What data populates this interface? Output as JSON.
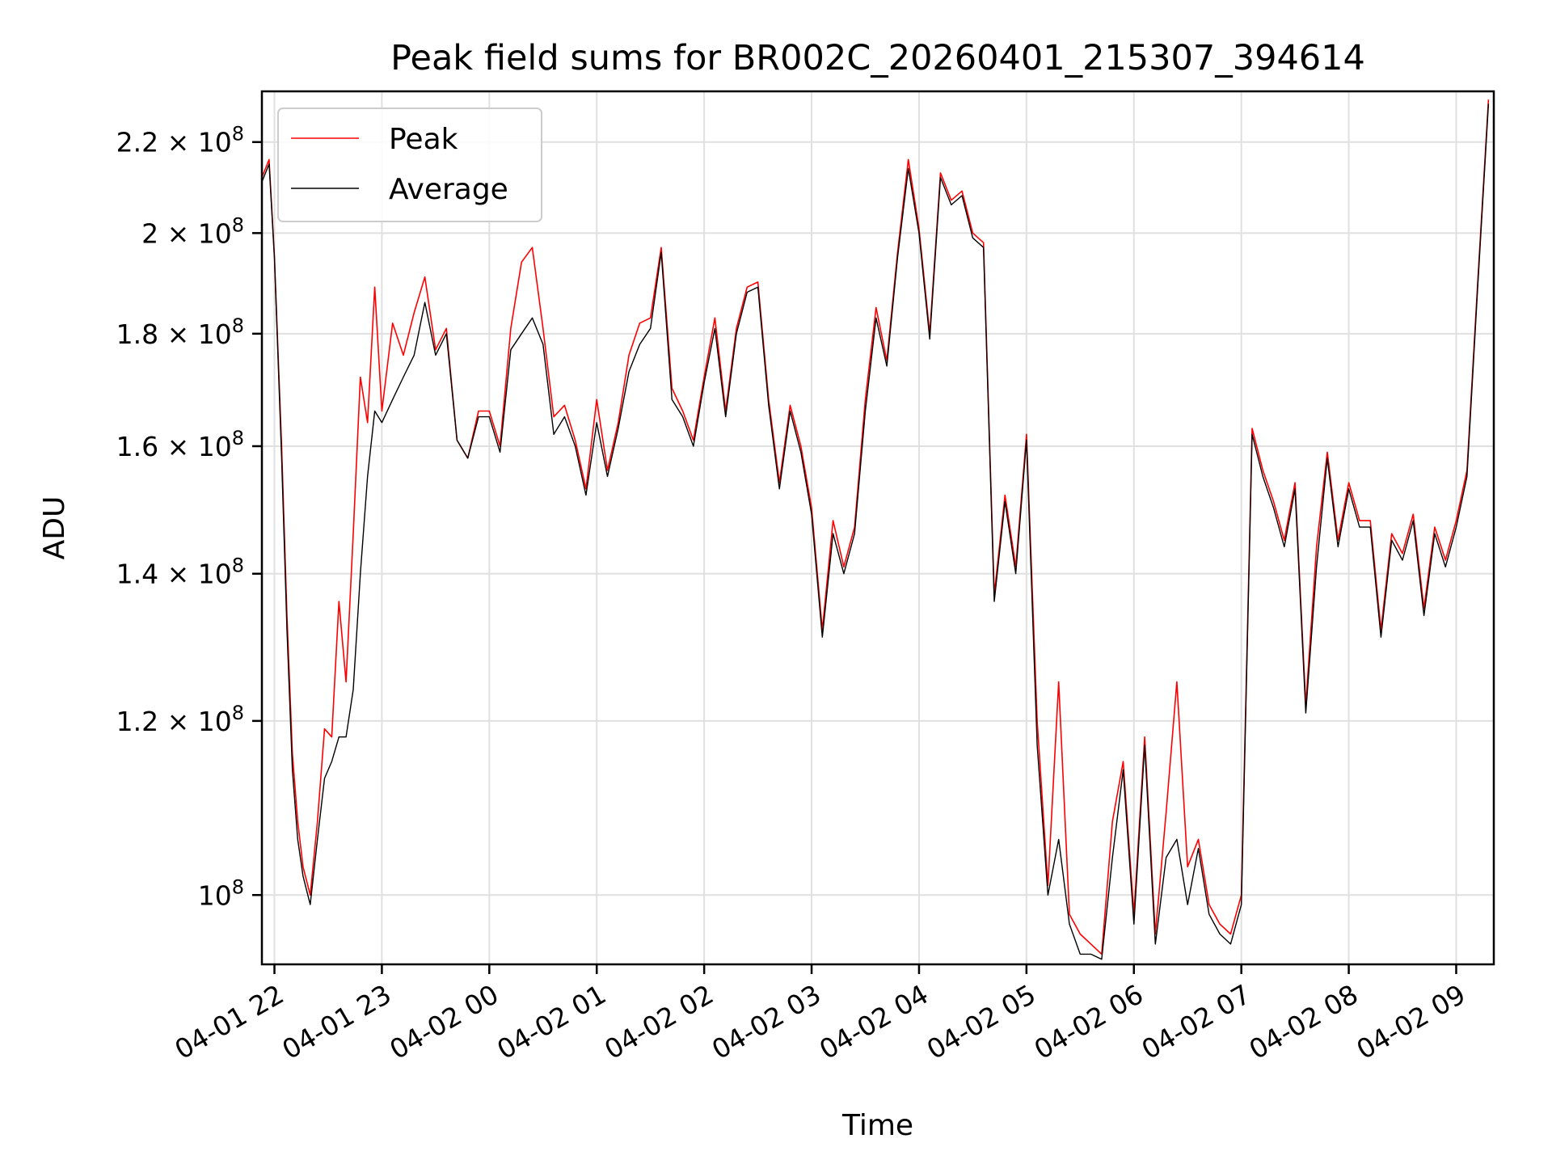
{
  "chart_data": {
    "type": "line",
    "title": "Peak field sums for BR002C_20260401_215307_394614",
    "xlabel": "Time",
    "ylabel": "ADU",
    "y_scale": "log",
    "ylim": [
      93000000,
      232000000
    ],
    "xlim": [
      "2026-04-01T21:53:00",
      "2026-04-02T09:21:00"
    ],
    "grid": true,
    "legend_position": "top-left",
    "x_ticks": [
      {
        "label": "04-01 22",
        "time": "2026-04-01T22:00:00"
      },
      {
        "label": "04-01 23",
        "time": "2026-04-01T23:00:00"
      },
      {
        "label": "04-02 00",
        "time": "2026-04-02T00:00:00"
      },
      {
        "label": "04-02 01",
        "time": "2026-04-02T01:00:00"
      },
      {
        "label": "04-02 02",
        "time": "2026-04-02T02:00:00"
      },
      {
        "label": "04-02 03",
        "time": "2026-04-02T03:00:00"
      },
      {
        "label": "04-02 04",
        "time": "2026-04-02T04:00:00"
      },
      {
        "label": "04-02 05",
        "time": "2026-04-02T05:00:00"
      },
      {
        "label": "04-02 06",
        "time": "2026-04-02T06:00:00"
      },
      {
        "label": "04-02 07",
        "time": "2026-04-02T07:00:00"
      },
      {
        "label": "04-02 08",
        "time": "2026-04-02T08:00:00"
      },
      {
        "label": "04-02 09",
        "time": "2026-04-02T09:00:00"
      }
    ],
    "y_ticks": [
      {
        "mantissa": "10",
        "exponent": "8",
        "value": 100000000
      },
      {
        "mantissa": "1.2 × 10",
        "exponent": "8",
        "value": 120000000
      },
      {
        "mantissa": "1.4 × 10",
        "exponent": "8",
        "value": 140000000
      },
      {
        "mantissa": "1.6 × 10",
        "exponent": "8",
        "value": 160000000
      },
      {
        "mantissa": "1.8 × 10",
        "exponent": "8",
        "value": 180000000
      },
      {
        "mantissa": "2 × 10",
        "exponent": "8",
        "value": 200000000
      },
      {
        "mantissa": "2.2 × 10",
        "exponent": "8",
        "value": 220000000
      }
    ],
    "x": [
      "2026-04-01T21:53:00",
      "2026-04-01T21:57:00",
      "2026-04-01T22:00:00",
      "2026-04-01T22:04:00",
      "2026-04-01T22:07:00",
      "2026-04-01T22:10:00",
      "2026-04-01T22:13:00",
      "2026-04-01T22:16:00",
      "2026-04-01T22:20:00",
      "2026-04-01T22:24:00",
      "2026-04-01T22:28:00",
      "2026-04-01T22:32:00",
      "2026-04-01T22:36:00",
      "2026-04-01T22:40:00",
      "2026-04-01T22:44:00",
      "2026-04-01T22:48:00",
      "2026-04-01T22:52:00",
      "2026-04-01T22:56:00",
      "2026-04-01T23:00:00",
      "2026-04-01T23:06:00",
      "2026-04-01T23:12:00",
      "2026-04-01T23:18:00",
      "2026-04-01T23:24:00",
      "2026-04-01T23:30:00",
      "2026-04-01T23:36:00",
      "2026-04-01T23:42:00",
      "2026-04-01T23:48:00",
      "2026-04-01T23:54:00",
      "2026-04-02T00:00:00",
      "2026-04-02T00:06:00",
      "2026-04-02T00:12:00",
      "2026-04-02T00:18:00",
      "2026-04-02T00:24:00",
      "2026-04-02T00:30:00",
      "2026-04-02T00:36:00",
      "2026-04-02T00:42:00",
      "2026-04-02T00:48:00",
      "2026-04-02T00:54:00",
      "2026-04-02T01:00:00",
      "2026-04-02T01:06:00",
      "2026-04-02T01:12:00",
      "2026-04-02T01:18:00",
      "2026-04-02T01:24:00",
      "2026-04-02T01:30:00",
      "2026-04-02T01:36:00",
      "2026-04-02T01:42:00",
      "2026-04-02T01:48:00",
      "2026-04-02T01:54:00",
      "2026-04-02T02:00:00",
      "2026-04-02T02:06:00",
      "2026-04-02T02:12:00",
      "2026-04-02T02:18:00",
      "2026-04-02T02:24:00",
      "2026-04-02T02:30:00",
      "2026-04-02T02:36:00",
      "2026-04-02T02:42:00",
      "2026-04-02T02:48:00",
      "2026-04-02T02:54:00",
      "2026-04-02T03:00:00",
      "2026-04-02T03:06:00",
      "2026-04-02T03:12:00",
      "2026-04-02T03:18:00",
      "2026-04-02T03:24:00",
      "2026-04-02T03:30:00",
      "2026-04-02T03:36:00",
      "2026-04-02T03:42:00",
      "2026-04-02T03:48:00",
      "2026-04-02T03:54:00",
      "2026-04-02T04:00:00",
      "2026-04-02T04:06:00",
      "2026-04-02T04:12:00",
      "2026-04-02T04:18:00",
      "2026-04-02T04:24:00",
      "2026-04-02T04:30:00",
      "2026-04-02T04:36:00",
      "2026-04-02T04:42:00",
      "2026-04-02T04:48:00",
      "2026-04-02T04:54:00",
      "2026-04-02T05:00:00",
      "2026-04-02T05:06:00",
      "2026-04-02T05:12:00",
      "2026-04-02T05:18:00",
      "2026-04-02T05:24:00",
      "2026-04-02T05:30:00",
      "2026-04-02T05:36:00",
      "2026-04-02T05:42:00",
      "2026-04-02T05:48:00",
      "2026-04-02T05:54:00",
      "2026-04-02T06:00:00",
      "2026-04-02T06:06:00",
      "2026-04-02T06:12:00",
      "2026-04-02T06:18:00",
      "2026-04-02T06:24:00",
      "2026-04-02T06:30:00",
      "2026-04-02T06:36:00",
      "2026-04-02T06:42:00",
      "2026-04-02T06:48:00",
      "2026-04-02T06:54:00",
      "2026-04-02T07:00:00",
      "2026-04-02T07:06:00",
      "2026-04-02T07:12:00",
      "2026-04-02T07:18:00",
      "2026-04-02T07:24:00",
      "2026-04-02T07:30:00",
      "2026-04-02T07:36:00",
      "2026-04-02T07:42:00",
      "2026-04-02T07:48:00",
      "2026-04-02T07:54:00",
      "2026-04-02T08:00:00",
      "2026-04-02T08:06:00",
      "2026-04-02T08:12:00",
      "2026-04-02T08:18:00",
      "2026-04-02T08:24:00",
      "2026-04-02T08:30:00",
      "2026-04-02T08:36:00",
      "2026-04-02T08:42:00",
      "2026-04-02T08:48:00",
      "2026-04-02T08:54:00",
      "2026-04-02T09:00:00",
      "2026-04-02T09:06:00",
      "2026-04-02T09:12:00",
      "2026-04-02T09:18:00"
    ],
    "series": [
      {
        "name": "Peak",
        "color": "#ff0000",
        "values": [
          212000000,
          216000000,
          195000000,
          160000000,
          134000000,
          116000000,
          108000000,
          103000000,
          100000000,
          108000000,
          119000000,
          118000000,
          136000000,
          125000000,
          146000000,
          172000000,
          164000000,
          189000000,
          166000000,
          182000000,
          176000000,
          184000000,
          191000000,
          177000000,
          181000000,
          161000000,
          158000000,
          166000000,
          166000000,
          160000000,
          181000000,
          194000000,
          197000000,
          181000000,
          165000000,
          167000000,
          161000000,
          153000000,
          168000000,
          156000000,
          164000000,
          176000000,
          182000000,
          183000000,
          197000000,
          170000000,
          166000000,
          161000000,
          172000000,
          183000000,
          166000000,
          181000000,
          189000000,
          190000000,
          168000000,
          154000000,
          167000000,
          160000000,
          150000000,
          132000000,
          148000000,
          141000000,
          147000000,
          168000000,
          185000000,
          175000000,
          196000000,
          216000000,
          201000000,
          180000000,
          213000000,
          207000000,
          209000000,
          200000000,
          198000000,
          137000000,
          152000000,
          141000000,
          162000000,
          120000000,
          101000000,
          125000000,
          98000000,
          96000000,
          95000000,
          94000000,
          108000000,
          115000000,
          98000000,
          118000000,
          96000000,
          109000000,
          125000000,
          103000000,
          106000000,
          99000000,
          97000000,
          96000000,
          100000000,
          163000000,
          156000000,
          151000000,
          145000000,
          154000000,
          122000000,
          144000000,
          159000000,
          145000000,
          154000000,
          148000000,
          148000000,
          132000000,
          146000000,
          143000000,
          149000000,
          135000000,
          147000000,
          142000000,
          148000000,
          156000000,
          190000000,
          230000000
        ]
      },
      {
        "name": "Average",
        "color": "#000000",
        "values": [
          211000000,
          215000000,
          195000000,
          158000000,
          132000000,
          114000000,
          106000000,
          102000000,
          99000000,
          106000000,
          113000000,
          115000000,
          118000000,
          118000000,
          124000000,
          140000000,
          155000000,
          166000000,
          164000000,
          168000000,
          172000000,
          176000000,
          186000000,
          176000000,
          180000000,
          161000000,
          158000000,
          165000000,
          165000000,
          159000000,
          177000000,
          180000000,
          183000000,
          178000000,
          162000000,
          165000000,
          160000000,
          152000000,
          164000000,
          155000000,
          163000000,
          173000000,
          178000000,
          181000000,
          196000000,
          168000000,
          165000000,
          160000000,
          171000000,
          181000000,
          165000000,
          180000000,
          188000000,
          189000000,
          167000000,
          153000000,
          166000000,
          159000000,
          149000000,
          131000000,
          146000000,
          140000000,
          146000000,
          166000000,
          183000000,
          174000000,
          195000000,
          214000000,
          200000000,
          179000000,
          212000000,
          206000000,
          208000000,
          199000000,
          197000000,
          136000000,
          151000000,
          140000000,
          161000000,
          117000000,
          100000000,
          106000000,
          97000000,
          94000000,
          94000000,
          93500000,
          104000000,
          114000000,
          97000000,
          117000000,
          95000000,
          104000000,
          106000000,
          99000000,
          105000000,
          98000000,
          96000000,
          95000000,
          99000000,
          162000000,
          155000000,
          150000000,
          144000000,
          153000000,
          121000000,
          141000000,
          158000000,
          144000000,
          153000000,
          147000000,
          147000000,
          131000000,
          145000000,
          142000000,
          148000000,
          134000000,
          146000000,
          141000000,
          147000000,
          155000000,
          189000000,
          229000000
        ]
      }
    ]
  }
}
